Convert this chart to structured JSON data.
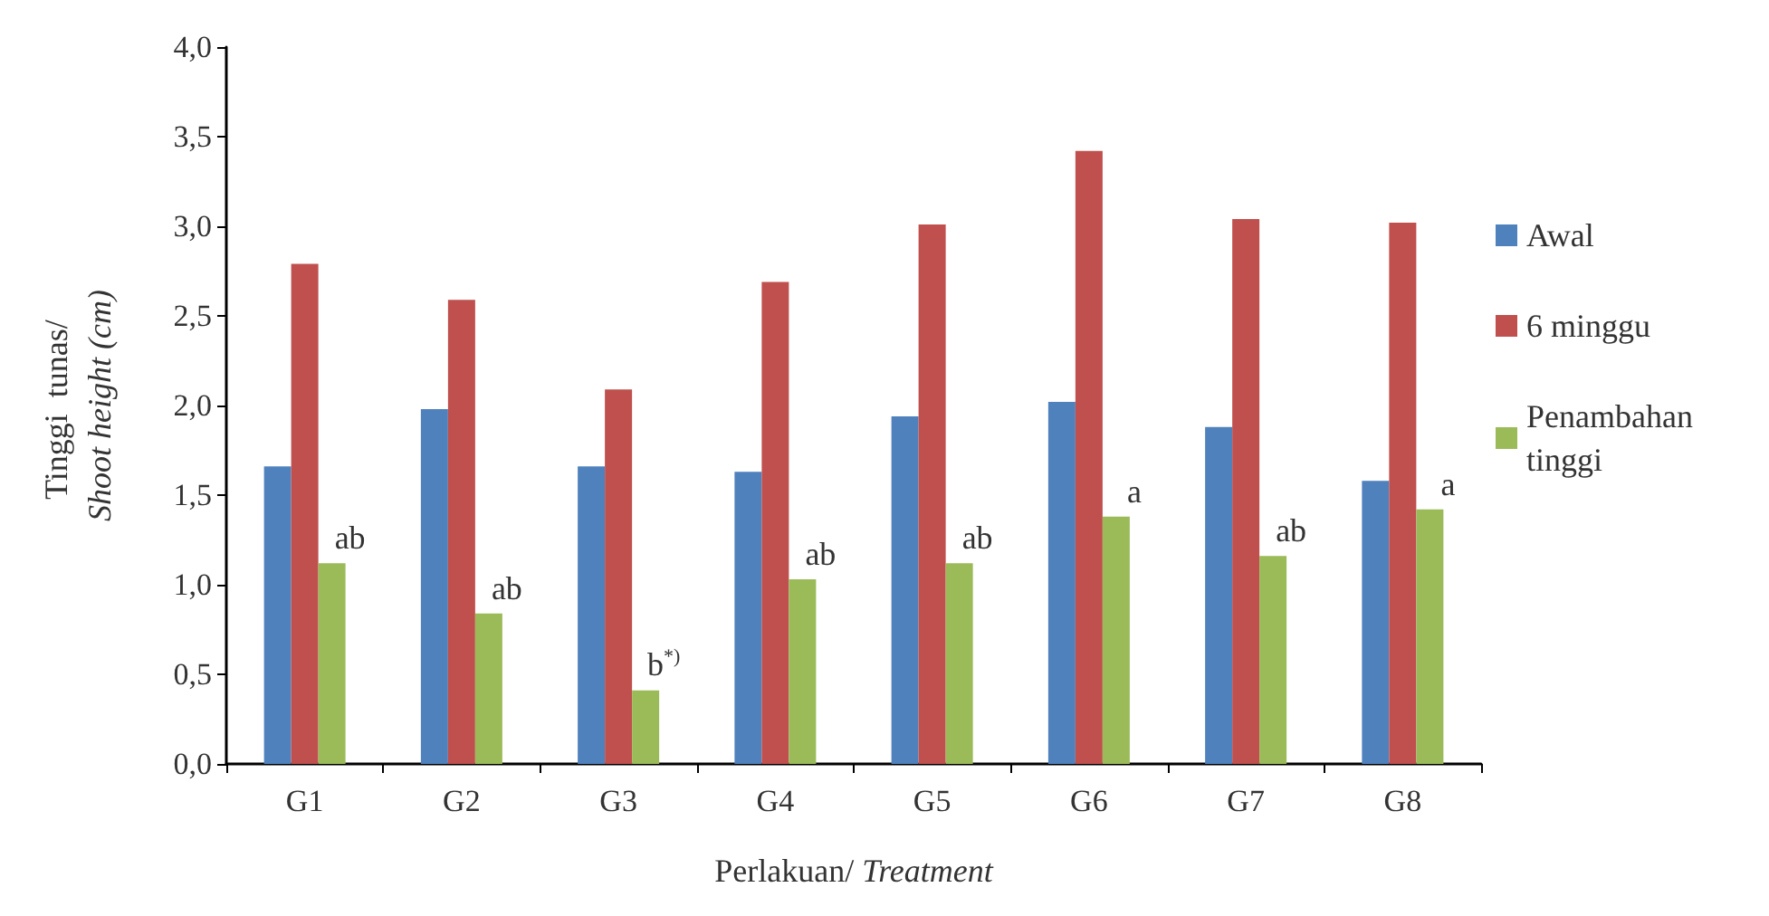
{
  "chart_data": {
    "type": "bar",
    "xlabel": "Perlakuan/ Treatment",
    "ylabel": "Tinggi  tunas/ Shoot height (cm)",
    "categories": [
      "G1",
      "G2",
      "G3",
      "G4",
      "G5",
      "G6",
      "G7",
      "G8"
    ],
    "series": [
      {
        "name": "Awal",
        "color": "#4f81bd",
        "values": [
          1.66,
          1.98,
          1.66,
          1.63,
          1.94,
          2.02,
          1.88,
          1.58
        ]
      },
      {
        "name": "6 minggu",
        "color": "#c0504d",
        "values": [
          2.79,
          2.59,
          2.09,
          2.69,
          3.01,
          3.42,
          3.04,
          3.02
        ]
      },
      {
        "name": "Penambahan tinggi",
        "color": "#9bbb59",
        "values": [
          1.12,
          0.84,
          0.41,
          1.03,
          1.12,
          1.38,
          1.16,
          1.42
        ],
        "value_labels": [
          "ab",
          "ab",
          "b$^{*)}$",
          "ab",
          "ab",
          "a",
          "ab",
          "a"
        ]
      }
    ],
    "ylim": [
      0,
      4
    ],
    "yticks": [
      {
        "value": 0,
        "label": "0,0"
      },
      {
        "value": 0.5,
        "label": "0,5"
      },
      {
        "value": 1,
        "label": "1,0"
      },
      {
        "value": 1.5,
        "label": "1,5"
      },
      {
        "value": 2,
        "label": "2,0"
      },
      {
        "value": 2.5,
        "label": "2,5"
      },
      {
        "value": 3,
        "label": "3,0"
      },
      {
        "value": 3.5,
        "label": "3,5"
      },
      {
        "value": 4,
        "label": "4,0"
      }
    ],
    "grid": false,
    "legend": "right"
  }
}
